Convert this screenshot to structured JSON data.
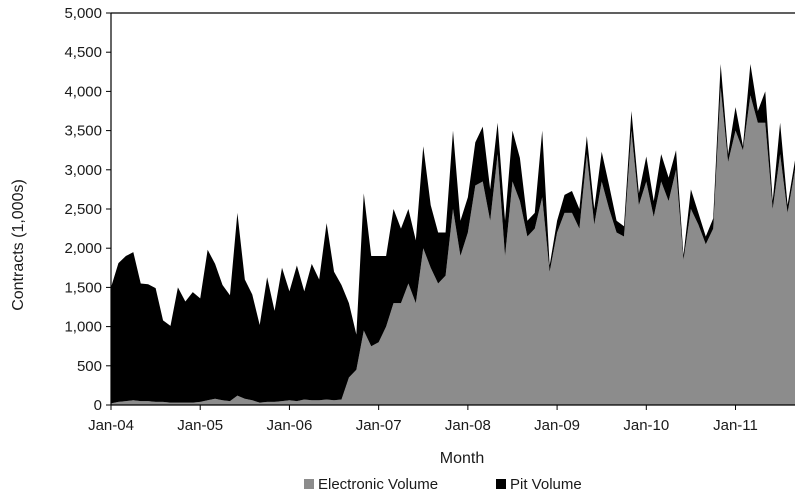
{
  "chart_data": {
    "type": "area",
    "stacked": true,
    "xlabel": "Month",
    "ylabel": "Contracts (1,000s)",
    "ylim": [
      0,
      5000
    ],
    "yticks": [
      0,
      500,
      1000,
      1500,
      2000,
      2500,
      3000,
      3500,
      4000,
      4500,
      5000
    ],
    "ytick_labels": [
      "0",
      "500",
      "1,000",
      "1,500",
      "2,000",
      "2,500",
      "3,000",
      "3,500",
      "4,000",
      "4,500",
      "5,000"
    ],
    "xtick_labels": [
      "Jan-04",
      "Jan-05",
      "Jan-06",
      "Jan-07",
      "Jan-08",
      "Jan-09",
      "Jan-10",
      "Jan-11"
    ],
    "xtick_index": [
      0,
      12,
      24,
      36,
      48,
      60,
      72,
      84
    ],
    "legend_position": "bottom",
    "grid": false,
    "months_start": "2004-01",
    "series": [
      {
        "name": "Electronic Volume",
        "color": "#8c8c8c",
        "values": [
          20,
          40,
          50,
          60,
          50,
          50,
          40,
          40,
          30,
          30,
          30,
          30,
          40,
          60,
          80,
          60,
          50,
          120,
          80,
          60,
          30,
          40,
          40,
          50,
          60,
          50,
          70,
          60,
          60,
          70,
          60,
          70,
          350,
          450,
          950,
          750,
          800,
          1000,
          1300,
          1300,
          1550,
          1300,
          2000,
          1750,
          1550,
          1650,
          2500,
          1900,
          2200,
          2800,
          2850,
          2350,
          3200,
          1900,
          2850,
          2600,
          2150,
          2250,
          2650,
          1700,
          2200,
          2450,
          2450,
          2250,
          3200,
          2300,
          2850,
          2500,
          2200,
          2150,
          3500,
          2550,
          2850,
          2400,
          2850,
          2600,
          3000,
          1850,
          2500,
          2300,
          2050,
          2250,
          4050,
          3100,
          3500,
          3250,
          3950,
          3600,
          3600,
          2500,
          3200,
          2450,
          3000
        ],
        "legend_label": "Electronic Volume"
      },
      {
        "name": "Pit Volume",
        "color": "#000000",
        "values": [
          1480,
          1770,
          1850,
          1890,
          1500,
          1490,
          1450,
          1040,
          980,
          1470,
          1290,
          1410,
          1320,
          1920,
          1720,
          1470,
          1350,
          2330,
          1520,
          1350,
          990,
          1590,
          1160,
          1700,
          1390,
          1730,
          1380,
          1740,
          1540,
          2250,
          1640,
          1460,
          950,
          450,
          1750,
          1150,
          1100,
          900,
          1200,
          950,
          950,
          800,
          1300,
          800,
          650,
          550,
          1000,
          450,
          450,
          550,
          700,
          400,
          400,
          450,
          650,
          550,
          200,
          200,
          850,
          80,
          150,
          230,
          280,
          250,
          230,
          200,
          380,
          300,
          150,
          130,
          250,
          150,
          320,
          200,
          350,
          300,
          250,
          60,
          250,
          150,
          100,
          130,
          300,
          100,
          300,
          50,
          400,
          150,
          400,
          100,
          400,
          100,
          120
        ],
        "legend_label": "Pit Volume"
      }
    ]
  }
}
